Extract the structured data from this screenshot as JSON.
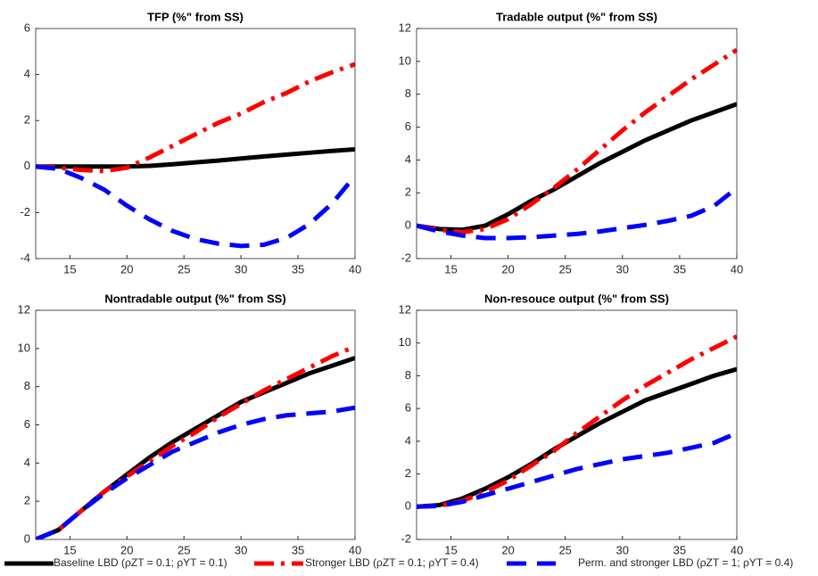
{
  "chart_data": [
    {
      "type": "line",
      "title": "TFP (%\" from SS)",
      "x": [
        12,
        14,
        16,
        18,
        20,
        22,
        24,
        26,
        28,
        30,
        32,
        34,
        36,
        38,
        40
      ],
      "xlim": [
        12,
        40
      ],
      "xticks": [
        15,
        20,
        25,
        30,
        35,
        40
      ],
      "ylim": [
        -4,
        6
      ],
      "yticks": [
        -4,
        -2,
        0,
        2,
        4,
        6
      ],
      "series": [
        {
          "name": "Baseline LBD (ρZT = 0.1; ρYT = 0.1)",
          "color": "#000000",
          "dash": "solid",
          "values": [
            0,
            0,
            0,
            0,
            0,
            0.03,
            0.1,
            0.18,
            0.26,
            0.35,
            0.44,
            0.52,
            0.6,
            0.68,
            0.75
          ]
        },
        {
          "name": "Stronger LBD (ρZT = 0.1; ρYT = 0.4)",
          "color": "#ff0000",
          "dash": "dashdot",
          "values": [
            0,
            -0.05,
            -0.15,
            -0.2,
            -0.05,
            0.4,
            0.9,
            1.4,
            1.9,
            2.3,
            2.8,
            3.2,
            3.7,
            4.1,
            4.45
          ]
        },
        {
          "name": "Perm. and stronger LBD (ρZT = 1; ρYT = 0.4)",
          "color": "#0000ff",
          "dash": "dashed",
          "values": [
            0,
            -0.1,
            -0.5,
            -1.0,
            -1.7,
            -2.3,
            -2.8,
            -3.15,
            -3.35,
            -3.45,
            -3.4,
            -3.1,
            -2.5,
            -1.6,
            -0.4
          ]
        }
      ]
    },
    {
      "type": "line",
      "title": "Tradable output (%\" from SS)",
      "x": [
        12,
        14,
        16,
        18,
        20,
        22,
        24,
        26,
        28,
        30,
        32,
        34,
        36,
        38,
        40
      ],
      "xlim": [
        12,
        40
      ],
      "xticks": [
        15,
        20,
        25,
        30,
        35,
        40
      ],
      "ylim": [
        -2,
        12
      ],
      "yticks": [
        -2,
        0,
        2,
        4,
        6,
        8,
        10,
        12
      ],
      "series": [
        {
          "color": "#000000",
          "dash": "solid",
          "values": [
            0,
            -0.2,
            -0.25,
            0,
            0.7,
            1.5,
            2.2,
            3.0,
            3.8,
            4.5,
            5.2,
            5.8,
            6.4,
            6.9,
            7.4
          ]
        },
        {
          "color": "#ff0000",
          "dash": "dashdot",
          "values": [
            0,
            -0.25,
            -0.4,
            -0.2,
            0.4,
            1.3,
            2.3,
            3.4,
            4.6,
            5.8,
            6.9,
            7.9,
            8.9,
            9.8,
            10.7
          ]
        },
        {
          "color": "#0000ff",
          "dash": "dashed",
          "values": [
            0,
            -0.35,
            -0.6,
            -0.75,
            -0.75,
            -0.7,
            -0.6,
            -0.5,
            -0.35,
            -0.15,
            0.05,
            0.3,
            0.6,
            1.2,
            2.3
          ]
        }
      ]
    },
    {
      "type": "line",
      "title": "Nontradable output (%\" from SS)",
      "x": [
        12,
        14,
        16,
        18,
        20,
        22,
        24,
        26,
        28,
        30,
        32,
        34,
        36,
        38,
        40
      ],
      "xlim": [
        12,
        40
      ],
      "xticks": [
        15,
        20,
        25,
        30,
        35,
        40
      ],
      "ylim": [
        0,
        12
      ],
      "yticks": [
        0,
        2,
        4,
        6,
        8,
        10,
        12
      ],
      "series": [
        {
          "color": "#000000",
          "dash": "solid",
          "values": [
            0,
            0.5,
            1.5,
            2.5,
            3.4,
            4.3,
            5.1,
            5.8,
            6.5,
            7.2,
            7.7,
            8.2,
            8.7,
            9.1,
            9.5
          ]
        },
        {
          "color": "#ff0000",
          "dash": "dashdot",
          "values": [
            0,
            0.5,
            1.5,
            2.5,
            3.3,
            4.1,
            4.9,
            5.6,
            6.4,
            7.1,
            7.8,
            8.4,
            9.0,
            9.6,
            10.1
          ]
        },
        {
          "color": "#0000ff",
          "dash": "dashed",
          "values": [
            0,
            0.5,
            1.5,
            2.4,
            3.2,
            3.9,
            4.6,
            5.1,
            5.6,
            6.0,
            6.3,
            6.5,
            6.6,
            6.7,
            6.9
          ]
        }
      ]
    },
    {
      "type": "line",
      "title": "Non-resouce output (%\" from SS)",
      "x": [
        12,
        14,
        16,
        18,
        20,
        22,
        24,
        26,
        28,
        30,
        32,
        34,
        36,
        38,
        40
      ],
      "xlim": [
        12,
        40
      ],
      "xticks": [
        15,
        20,
        25,
        30,
        35,
        40
      ],
      "ylim": [
        -2,
        12
      ],
      "yticks": [
        -2,
        0,
        2,
        4,
        6,
        8,
        10,
        12
      ],
      "series": [
        {
          "color": "#000000",
          "dash": "solid",
          "values": [
            0,
            0.1,
            0.5,
            1.1,
            1.8,
            2.6,
            3.5,
            4.3,
            5.1,
            5.8,
            6.5,
            7.0,
            7.5,
            8.0,
            8.4
          ]
        },
        {
          "color": "#ff0000",
          "dash": "dashdot",
          "values": [
            0,
            0.05,
            0.35,
            0.9,
            1.6,
            2.5,
            3.4,
            4.5,
            5.5,
            6.5,
            7.4,
            8.2,
            9.0,
            9.7,
            10.4
          ]
        },
        {
          "color": "#0000ff",
          "dash": "dashed",
          "values": [
            0,
            0.05,
            0.3,
            0.7,
            1.1,
            1.5,
            1.9,
            2.3,
            2.6,
            2.9,
            3.1,
            3.3,
            3.6,
            3.9,
            4.5
          ]
        }
      ]
    }
  ]
}
